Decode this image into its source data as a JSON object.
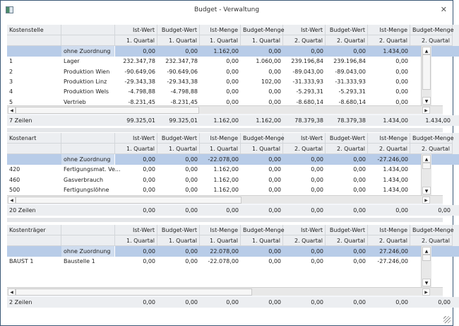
{
  "window": {
    "title": "Budget - Verwaltung",
    "close": "✕"
  },
  "colors": {
    "selected": "#b8cce8",
    "header": "#eceef1",
    "border": "#3b5876"
  },
  "columns": [
    {
      "h1": "Ist-Wert",
      "h2": "1. Quartal"
    },
    {
      "h1": "Budget-Wert",
      "h2": "1. Quartal"
    },
    {
      "h1": "Ist-Menge",
      "h2": "1. Quartal"
    },
    {
      "h1": "Budget-Menge",
      "h2": "1. Quartal"
    },
    {
      "h1": "Ist-Wert",
      "h2": "2. Quartal"
    },
    {
      "h1": "Budget-Wert",
      "h2": "2. Quartal"
    },
    {
      "h1": "Ist-Menge",
      "h2": "2. Quartal"
    },
    {
      "h1": "Budget-Menge",
      "h2": "2. Quartal"
    }
  ],
  "grids": [
    {
      "key_header": "Kostenstelle",
      "footer_label": "7 Zeilen",
      "rows": [
        {
          "code": "",
          "name": "ohne Zuordnung",
          "values": [
            "0,00",
            "0,00",
            "1.162,00",
            "0,00",
            "0,00",
            "0,00",
            "1.434,00",
            ""
          ]
        },
        {
          "code": "1",
          "name": "Lager",
          "values": [
            "232.347,78",
            "232.347,78",
            "0,00",
            "1.060,00",
            "239.196,84",
            "239.196,84",
            "0,00",
            ""
          ]
        },
        {
          "code": "2",
          "name": "Produktion Wien",
          "values": [
            "-90.649,06",
            "-90.649,06",
            "0,00",
            "0,00",
            "-89.043,00",
            "-89.043,00",
            "0,00",
            ""
          ]
        },
        {
          "code": "3",
          "name": "Produktion Linz",
          "values": [
            "-29.343,38",
            "-29.343,38",
            "0,00",
            "102,00",
            "-31.333,93",
            "-31.333,93",
            "0,00",
            ""
          ]
        },
        {
          "code": "4",
          "name": "Produktion Wels",
          "values": [
            "-4.798,88",
            "-4.798,88",
            "0,00",
            "0,00",
            "-5.293,31",
            "-5.293,31",
            "0,00",
            ""
          ]
        },
        {
          "code": "5",
          "name": "Vertrieb",
          "values": [
            "-8.231,45",
            "-8.231,45",
            "0,00",
            "0,00",
            "-8.680,14",
            "-8.680,14",
            "0,00",
            ""
          ]
        }
      ],
      "footer": [
        "99.325,01",
        "99.325,01",
        "1.162,00",
        "1.162,00",
        "78.379,38",
        "78.379,38",
        "1.434,00",
        "1.434,00"
      ]
    },
    {
      "key_header": "Kostenart",
      "footer_label": "20 Zeilen",
      "rows": [
        {
          "code": "",
          "name": "ohne Zuordnung",
          "values": [
            "0,00",
            "0,00",
            "-22.078,00",
            "0,00",
            "0,00",
            "0,00",
            "-27.246,00",
            ""
          ]
        },
        {
          "code": "420",
          "name": "Fertigungsmat. Ve...",
          "values": [
            "0,00",
            "0,00",
            "1.162,00",
            "0,00",
            "0,00",
            "0,00",
            "1.434,00",
            ""
          ]
        },
        {
          "code": "460",
          "name": "Gasverbrauch",
          "values": [
            "0,00",
            "0,00",
            "1.162,00",
            "0,00",
            "0,00",
            "0,00",
            "1.434,00",
            ""
          ]
        },
        {
          "code": "500",
          "name": "Fertigungslöhne",
          "values": [
            "0,00",
            "0,00",
            "1.162,00",
            "0,00",
            "0,00",
            "0,00",
            "1.434,00",
            ""
          ]
        }
      ],
      "footer": [
        "0,00",
        "0,00",
        "0,00",
        "0,00",
        "0,00",
        "0,00",
        "0,00",
        "0,00"
      ]
    },
    {
      "key_header": "Kostenträger",
      "footer_label": "2 Zeilen",
      "rows": [
        {
          "code": "",
          "name": "ohne Zuordnung",
          "values": [
            "0,00",
            "0,00",
            "22.078,00",
            "0,00",
            "0,00",
            "0,00",
            "27.246,00",
            ""
          ]
        },
        {
          "code": "BAUST 1",
          "name": "Baustelle 1",
          "values": [
            "0,00",
            "0,00",
            "-22.078,00",
            "0,00",
            "0,00",
            "0,00",
            "-27.246,00",
            ""
          ]
        }
      ],
      "footer": [
        "0,00",
        "0,00",
        "0,00",
        "0,00",
        "0,00",
        "0,00",
        "0,00",
        "0,00"
      ]
    }
  ]
}
